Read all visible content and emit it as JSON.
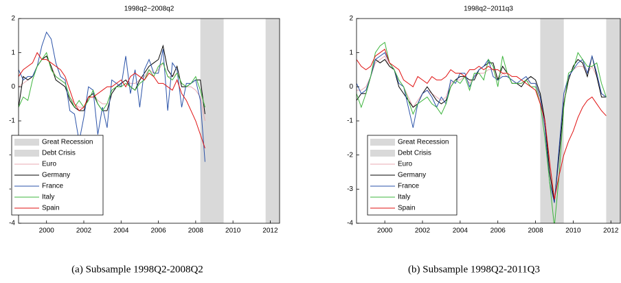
{
  "chart_data": [
    {
      "type": "line",
      "title": "1998q2−2008q2",
      "caption": "(a) Subsample 1998Q2-2008Q2",
      "x": [
        1998.5,
        1998.75,
        1999,
        1999.25,
        1999.5,
        1999.75,
        2000,
        2000.25,
        2000.5,
        2000.75,
        2001,
        2001.25,
        2001.5,
        2001.75,
        2002,
        2002.25,
        2002.5,
        2002.75,
        2003,
        2003.25,
        2003.5,
        2003.75,
        2004,
        2004.25,
        2004.5,
        2004.75,
        2005,
        2005.25,
        2005.5,
        2005.75,
        2006,
        2006.25,
        2006.5,
        2006.75,
        2007,
        2007.25,
        2007.5,
        2007.75,
        2008,
        2008.25,
        2008.5
      ],
      "shaded": [
        {
          "name": "Great Recession",
          "color": "#d9d9d9",
          "x": [
            2008.25,
            2009.5
          ]
        },
        {
          "name": "Debt Crisis",
          "color": "#d9d9d9",
          "x": [
            2011.75,
            2012.5
          ]
        }
      ],
      "series": [
        {
          "name": "Euro",
          "color": "#e8a8b0",
          "values": [
            0.0,
            0.1,
            0.2,
            0.3,
            0.6,
            0.8,
            0.9,
            0.6,
            0.3,
            0.2,
            0.1,
            -0.3,
            -0.5,
            -0.6,
            -0.6,
            -0.3,
            -0.2,
            -0.4,
            -0.5,
            -0.5,
            -0.1,
            0.0,
            0.1,
            0.2,
            0.1,
            0.1,
            0.2,
            0.3,
            0.5,
            0.4,
            0.5,
            0.7,
            0.3,
            0.3,
            0.4,
            0.1,
            0.0,
            0.0,
            -0.1,
            -0.3,
            -1.0
          ]
        },
        {
          "name": "Germany",
          "color": "#000000",
          "values": [
            -0.6,
            0.3,
            0.2,
            0.3,
            0.6,
            0.8,
            0.9,
            0.6,
            0.2,
            0.1,
            0.0,
            -0.4,
            -0.6,
            -0.7,
            -0.7,
            -0.3,
            -0.2,
            -0.5,
            -0.7,
            -0.7,
            -0.2,
            0.0,
            0.1,
            0.2,
            0.0,
            -0.1,
            0.2,
            0.4,
            0.6,
            0.7,
            0.8,
            1.2,
            0.5,
            0.3,
            0.6,
            0.0,
            0.0,
            0.1,
            0.2,
            0.2,
            -0.8
          ]
        },
        {
          "name": "France",
          "color": "#2a52a8",
          "values": [
            0.5,
            0.2,
            0.3,
            0.3,
            0.6,
            1.2,
            1.6,
            1.4,
            0.7,
            0.3,
            0.2,
            -0.7,
            -0.8,
            -1.6,
            -0.9,
            0.0,
            -0.1,
            -1.4,
            -0.6,
            -1.2,
            0.2,
            0.1,
            0.0,
            0.9,
            -0.2,
            0.5,
            -0.6,
            0.5,
            0.8,
            0.4,
            0.4,
            1.1,
            -0.7,
            0.7,
            0.5,
            -0.6,
            0.1,
            0.1,
            0.2,
            -0.4,
            -2.2
          ]
        },
        {
          "name": "Italy",
          "color": "#3cb43c",
          "values": [
            -0.6,
            -0.3,
            -0.4,
            0.2,
            0.6,
            0.8,
            1.0,
            0.5,
            0.3,
            0.2,
            0.1,
            -0.3,
            -0.6,
            -0.4,
            -0.6,
            -0.4,
            -0.1,
            -0.5,
            -0.7,
            -0.5,
            -0.1,
            0.0,
            0.0,
            0.1,
            0.0,
            -0.1,
            0.1,
            0.2,
            0.5,
            0.3,
            0.6,
            0.7,
            0.3,
            0.2,
            0.4,
            0.1,
            0.0,
            0.1,
            0.3,
            -0.1,
            -0.6
          ]
        },
        {
          "name": "Spain",
          "color": "#e01010",
          "values": [
            0.3,
            0.5,
            0.6,
            0.7,
            1.0,
            0.8,
            0.8,
            0.7,
            0.6,
            0.5,
            0.3,
            -0.1,
            -0.5,
            -0.7,
            -0.6,
            -0.3,
            -0.3,
            -0.2,
            -0.1,
            0.0,
            0.0,
            0.1,
            0.2,
            0.0,
            0.3,
            0.4,
            0.3,
            0.2,
            0.4,
            0.3,
            0.1,
            0.1,
            0.0,
            -0.1,
            0.2,
            -0.2,
            -0.4,
            -0.7,
            -1.0,
            -1.4,
            -1.8
          ]
        }
      ],
      "xlim": [
        1998.5,
        2012.5
      ],
      "xticks": [
        2000,
        2002,
        2004,
        2006,
        2008,
        2010,
        2012
      ],
      "ylim": [
        -4,
        2
      ],
      "yticks": [
        -4,
        -3,
        -2,
        -1,
        0,
        1,
        2
      ],
      "legend": "lower left"
    },
    {
      "type": "line",
      "title": "1998q2−2011q3",
      "caption": "(b) Subsample 1998Q2-2011Q3",
      "x": [
        1998.5,
        1998.75,
        1999,
        1999.25,
        1999.5,
        1999.75,
        2000,
        2000.25,
        2000.5,
        2000.75,
        2001,
        2001.25,
        2001.5,
        2001.75,
        2002,
        2002.25,
        2002.5,
        2002.75,
        2003,
        2003.25,
        2003.5,
        2003.75,
        2004,
        2004.25,
        2004.5,
        2004.75,
        2005,
        2005.25,
        2005.5,
        2005.75,
        2006,
        2006.25,
        2006.5,
        2006.75,
        2007,
        2007.25,
        2007.5,
        2007.75,
        2008,
        2008.25,
        2008.5,
        2008.75,
        2009,
        2009.25,
        2009.5,
        2009.75,
        2010,
        2010.25,
        2010.5,
        2010.75,
        2011,
        2011.25,
        2011.5,
        2011.75
      ],
      "shaded": [
        {
          "name": "Great Recession",
          "color": "#d9d9d9",
          "x": [
            2008.25,
            2009.5
          ]
        },
        {
          "name": "Debt Crisis",
          "color": "#d9d9d9",
          "x": [
            2011.75,
            2012.5
          ]
        }
      ],
      "series": [
        {
          "name": "Euro",
          "color": "#e8a8b0",
          "values": [
            -0.1,
            -0.1,
            0.0,
            0.3,
            0.7,
            0.8,
            0.9,
            0.6,
            0.5,
            0.2,
            0.0,
            -0.3,
            -0.6,
            -0.4,
            -0.2,
            -0.1,
            -0.2,
            -0.3,
            -0.4,
            -0.3,
            0.1,
            0.2,
            0.2,
            0.3,
            0.1,
            0.3,
            0.4,
            0.4,
            0.5,
            0.5,
            0.2,
            0.4,
            0.3,
            0.2,
            0.1,
            0.1,
            0.2,
            0.1,
            0.1,
            -0.4,
            -1.1,
            -2.5,
            -3.3,
            -2.0,
            -0.4,
            0.3,
            0.5,
            0.6,
            0.6,
            0.4,
            0.6,
            0.3,
            -0.2,
            -0.3
          ]
        },
        {
          "name": "Germany",
          "color": "#000000",
          "values": [
            -0.4,
            -0.2,
            -0.2,
            0.3,
            0.8,
            0.7,
            0.8,
            0.6,
            0.5,
            0.0,
            -0.2,
            -0.4,
            -0.6,
            -0.5,
            -0.2,
            0.0,
            -0.2,
            -0.4,
            -0.5,
            -0.4,
            0.0,
            0.2,
            0.3,
            0.3,
            0.2,
            0.2,
            0.5,
            0.6,
            0.7,
            0.7,
            0.2,
            0.6,
            0.4,
            0.1,
            0.1,
            0.0,
            0.2,
            0.3,
            0.2,
            -0.2,
            -1.0,
            -2.5,
            -3.4,
            -2.0,
            -0.5,
            0.2,
            0.6,
            0.8,
            0.7,
            0.3,
            0.9,
            0.3,
            -0.3,
            -0.3
          ]
        },
        {
          "name": "France",
          "color": "#2a52a8",
          "values": [
            0.1,
            -0.2,
            -0.1,
            0.3,
            0.8,
            0.9,
            1.0,
            0.7,
            0.5,
            0.1,
            0.0,
            -0.6,
            -1.2,
            -0.5,
            -0.2,
            -0.1,
            -0.3,
            -0.6,
            -0.3,
            -0.5,
            0.2,
            0.1,
            0.4,
            0.4,
            0.0,
            0.3,
            0.5,
            0.6,
            0.8,
            0.3,
            0.2,
            0.3,
            0.3,
            0.2,
            0.1,
            0.2,
            0.3,
            0.1,
            0.1,
            -0.3,
            -1.2,
            -2.8,
            -3.4,
            -1.8,
            -0.2,
            0.3,
            0.5,
            0.7,
            0.8,
            0.4,
            0.9,
            0.4,
            -0.2,
            -0.3
          ]
        },
        {
          "name": "Italy",
          "color": "#3cb43c",
          "values": [
            -0.2,
            -0.6,
            -0.2,
            0.3,
            1.0,
            1.2,
            1.3,
            0.7,
            0.5,
            0.2,
            0.0,
            -0.4,
            -0.8,
            -0.5,
            -0.4,
            -0.3,
            -0.5,
            -0.6,
            -0.8,
            -0.5,
            0.0,
            0.2,
            0.1,
            0.3,
            -0.1,
            0.4,
            0.4,
            0.2,
            0.8,
            0.6,
            0.0,
            0.9,
            0.4,
            0.1,
            0.1,
            0.1,
            0.2,
            0.0,
            0.0,
            -0.5,
            -1.5,
            -2.8,
            -4.1,
            -2.6,
            -0.6,
            0.4,
            0.5,
            1.0,
            0.8,
            0.6,
            0.6,
            0.7,
            0.1,
            -0.3
          ]
        },
        {
          "name": "Spain",
          "color": "#e01010",
          "values": [
            0.8,
            0.6,
            0.5,
            0.6,
            0.9,
            1.0,
            1.1,
            0.7,
            0.6,
            0.5,
            0.2,
            0.1,
            0.0,
            0.3,
            0.2,
            0.1,
            0.3,
            0.2,
            0.2,
            0.3,
            0.5,
            0.4,
            0.4,
            0.3,
            0.5,
            0.5,
            0.6,
            0.5,
            0.6,
            0.5,
            0.5,
            0.4,
            0.4,
            0.3,
            0.3,
            0.2,
            0.1,
            0.0,
            -0.1,
            -0.5,
            -1.0,
            -2.2,
            -3.3,
            -2.6,
            -2.0,
            -1.6,
            -1.3,
            -0.9,
            -0.6,
            -0.4,
            -0.3,
            -0.5,
            -0.7,
            -0.85
          ]
        }
      ],
      "xlim": [
        1998.5,
        2012.5
      ],
      "xticks": [
        2000,
        2002,
        2004,
        2006,
        2008,
        2010,
        2012
      ],
      "ylim": [
        -4,
        2
      ],
      "yticks": [
        -4,
        -3,
        -2,
        -1,
        0,
        1,
        2
      ],
      "legend": "lower left"
    }
  ]
}
